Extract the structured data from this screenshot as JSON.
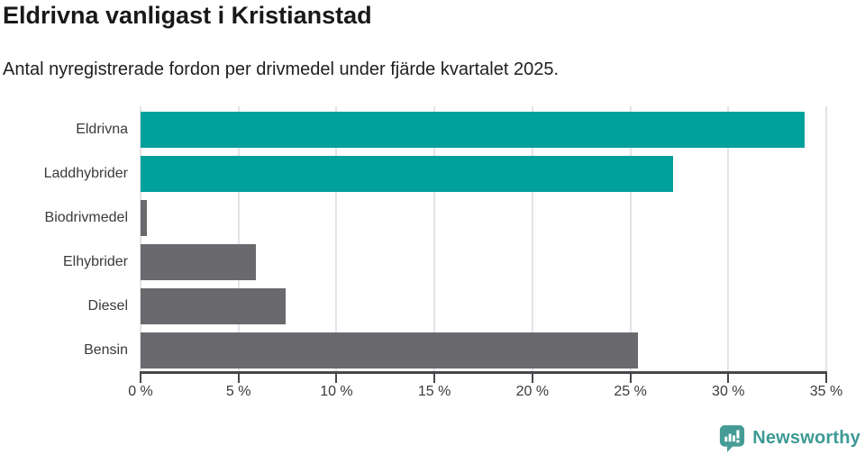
{
  "chart": {
    "title": "Eldrivna vanligast i Kristianstad",
    "subtitle": "Antal nyregistrerade fordon per drivmedel under fjärde kvartalet 2025."
  },
  "chart_data": {
    "type": "bar",
    "orientation": "horizontal",
    "title": "Eldrivna vanligast i Kristianstad",
    "subtitle": "Antal nyregistrerade fordon per drivmedel under fjärde kvartalet 2025.",
    "categories": [
      "Eldrivna",
      "Laddhybrider",
      "Biodrivmedel",
      "Elhybrider",
      "Diesel",
      "Bensin"
    ],
    "values": [
      33.9,
      27.2,
      0.3,
      5.9,
      7.4,
      25.4
    ],
    "unit": "%",
    "xlabel": "",
    "ylabel": "",
    "xlim": [
      0,
      35
    ],
    "x_ticks": [
      0,
      5,
      10,
      15,
      20,
      25,
      30,
      35
    ],
    "x_tick_suffix": " %",
    "grid": true,
    "legend": "none",
    "highlight_color": "#00a09b",
    "default_color": "#6a6a6e",
    "bar_colors": [
      "#00a09b",
      "#00a09b",
      "#6a6a6e",
      "#6a6a6e",
      "#6a6a6e",
      "#6a6a6e"
    ]
  },
  "footer": {
    "brand": "Newsworthy",
    "brand_color": "#3c9a94",
    "icon_color": "#459c96"
  }
}
